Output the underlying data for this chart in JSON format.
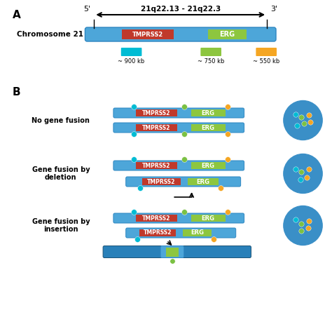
{
  "title_A": "A",
  "title_B": "B",
  "chr_label": "Chromosome 21",
  "region_label": "21q22.13 - 21q22.3",
  "tmprss2_label": "TMPRSS2",
  "erg_label": "ERG",
  "legend_labels": [
    "~ 900 kb",
    "~ 750 kb",
    "~ 550 kb"
  ],
  "no_fusion_label": "No gene fusion",
  "deletion_label": "Gene fusion by\ndeletion",
  "insertion_label": "Gene fusion by\ninsertion",
  "blue_chr": "#4da6d9",
  "blue_chr_dark": "#2e86c1",
  "blue_chr_thick": "#1a6fa0",
  "red_gene": "#c0392b",
  "green_gene": "#8dc63f",
  "cyan_dot": "#00bcd4",
  "green_dot": "#7bc143",
  "orange_dot": "#f5a623",
  "legend_cyan": "#00bcd4",
  "legend_green": "#8dc63f",
  "legend_orange": "#f5a623",
  "bg_color": "#ffffff",
  "cell_color": "#3a8fc7"
}
